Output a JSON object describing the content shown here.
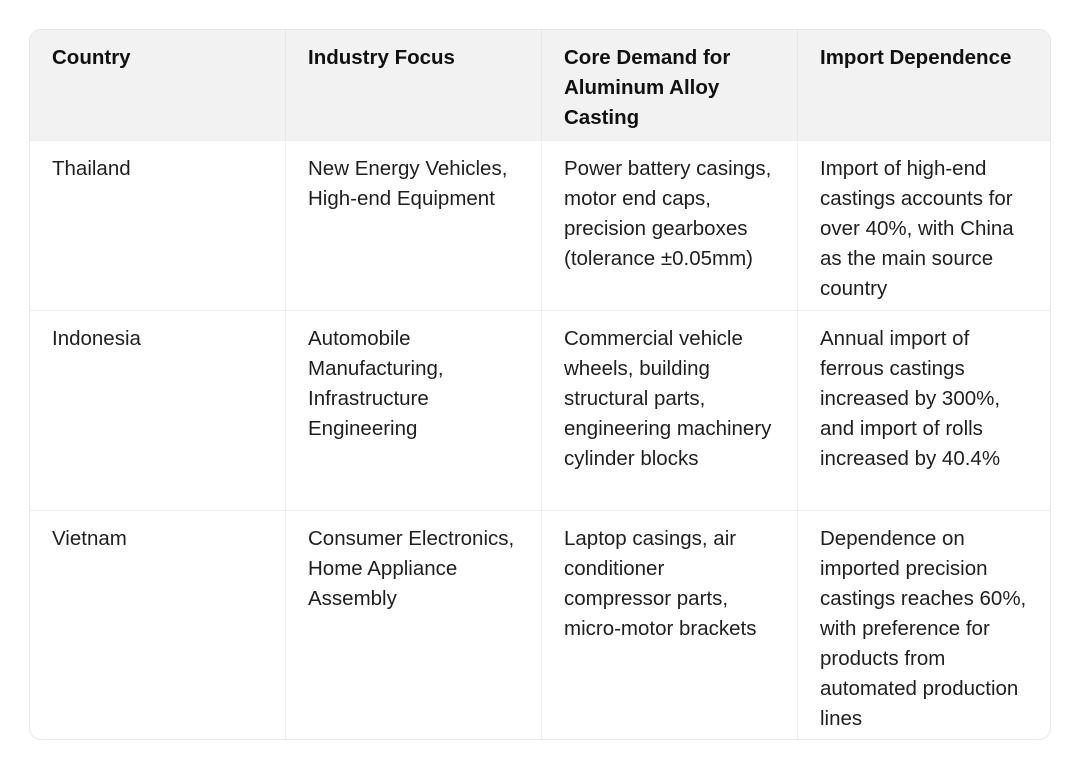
{
  "table": {
    "headers": [
      "Country",
      "Industry Focus",
      "Core Demand for Aluminum Alloy Casting",
      "Import Dependence"
    ],
    "rows": [
      [
        "Thailand",
        "New Energy Vehicles, High-end Equipment",
        "Power battery casings, motor end caps, precision gearboxes (tolerance ±0.05mm)",
        "Import of high-end castings accounts for over 40%, with China as the main source country"
      ],
      [
        "Indonesia",
        "Automobile Manufacturing, Infrastructure Engineering",
        "Commercial vehicle wheels, building structural parts, engineering machinery cylinder blocks",
        "Annual import of ferrous castings increased by 300%, and import of rolls increased by 40.4%"
      ],
      [
        "Vietnam",
        "Consumer Electronics, Home Appliance Assembly",
        "Laptop casings, air conditioner compressor parts, micro-motor brackets",
        "Dependence on imported precision castings reaches 60%, with preference for products from automated production lines"
      ]
    ]
  }
}
